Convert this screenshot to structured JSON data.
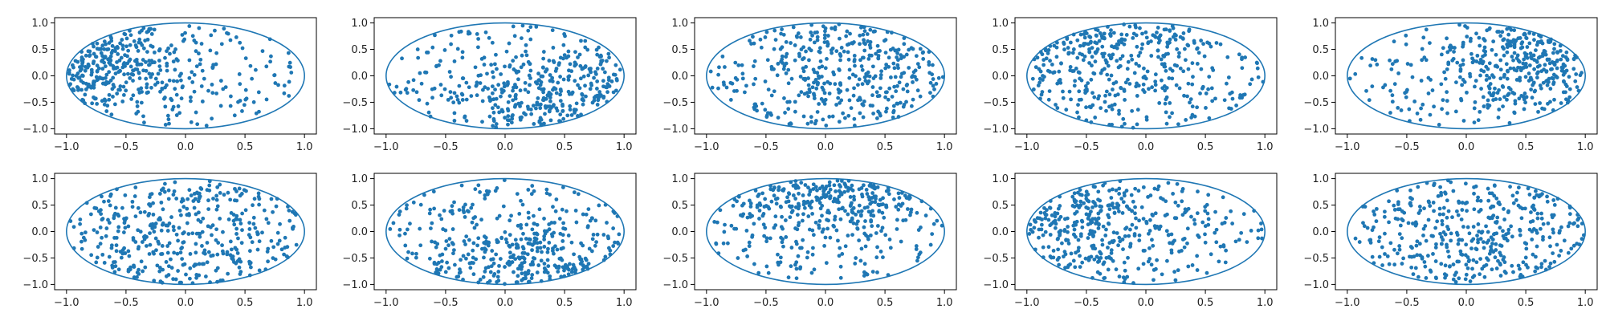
{
  "figure": {
    "layout": {
      "rows": 2,
      "cols": 5
    },
    "colors": {
      "series": "#1f77b4",
      "axes": "#000000",
      "text": "#222222"
    },
    "marker": "dot"
  },
  "chart_data": [
    {
      "type": "scatter",
      "title": "",
      "xlabel": "",
      "ylabel": "",
      "xlim": [
        -1.1,
        1.1
      ],
      "ylim": [
        -1.1,
        1.1
      ],
      "xticks": [
        -1.0,
        -0.5,
        0.0,
        0.5,
        1.0
      ],
      "yticks": [
        -1.0,
        -0.5,
        0.0,
        0.5,
        1.0
      ],
      "xtick_labels": [
        "−1.0",
        "−0.5",
        "0.0",
        "0.5",
        "1.0"
      ],
      "ytick_labels": [
        "−1.0",
        "−0.5",
        "0.0",
        "0.5",
        "1.0"
      ],
      "grid": false,
      "overlay": {
        "shape": "ellipse",
        "cx": 0,
        "cy": 0,
        "rx": 1,
        "ry": 1
      },
      "series": [
        {
          "density_center": [
            -0.8,
            0.2
          ],
          "spread": 0.45,
          "count": 420
        }
      ]
    },
    {
      "type": "scatter",
      "title": "",
      "xlabel": "",
      "ylabel": "",
      "xlim": [
        -1.1,
        1.1
      ],
      "ylim": [
        -1.1,
        1.1
      ],
      "xticks": [
        -1.0,
        -0.5,
        0.0,
        0.5,
        1.0
      ],
      "yticks": [
        -1.0,
        -0.5,
        0.0,
        0.5,
        1.0
      ],
      "xtick_labels": [
        "−1.0",
        "−0.5",
        "0.0",
        "0.5",
        "1.0"
      ],
      "ytick_labels": [
        "−1.0",
        "−0.5",
        "0.0",
        "0.5",
        "1.0"
      ],
      "grid": false,
      "overlay": {
        "shape": "ellipse",
        "cx": 0,
        "cy": 0,
        "rx": 1,
        "ry": 1
      },
      "series": [
        {
          "density_center": [
            0.5,
            -0.4
          ],
          "spread": 0.5,
          "count": 420
        }
      ]
    },
    {
      "type": "scatter",
      "title": "",
      "xlabel": "",
      "ylabel": "",
      "xlim": [
        -1.1,
        1.1
      ],
      "ylim": [
        -1.1,
        1.1
      ],
      "xticks": [
        -1.0,
        -0.5,
        0.0,
        0.5,
        1.0
      ],
      "yticks": [
        -1.0,
        -0.5,
        0.0,
        0.5,
        1.0
      ],
      "xtick_labels": [
        "−1.0",
        "−0.5",
        "0.0",
        "0.5",
        "1.0"
      ],
      "ytick_labels": [
        "−1.0",
        "−0.5",
        "0.0",
        "0.5",
        "1.0"
      ],
      "grid": false,
      "overlay": {
        "shape": "ellipse",
        "cx": 0,
        "cy": 0,
        "rx": 1,
        "ry": 1
      },
      "series": [
        {
          "density_center": [
            0.3,
            0.3
          ],
          "spread": 0.6,
          "count": 420
        }
      ]
    },
    {
      "type": "scatter",
      "title": "",
      "xlabel": "",
      "ylabel": "",
      "xlim": [
        -1.1,
        1.1
      ],
      "ylim": [
        -1.1,
        1.1
      ],
      "xticks": [
        -1.0,
        -0.5,
        0.0,
        0.5,
        1.0
      ],
      "yticks": [
        -1.0,
        -0.5,
        0.0,
        0.5,
        1.0
      ],
      "xtick_labels": [
        "−1.0",
        "−0.5",
        "0.0",
        "0.5",
        "1.0"
      ],
      "ytick_labels": [
        "−1.0",
        "−0.5",
        "0.0",
        "0.5",
        "1.0"
      ],
      "grid": false,
      "overlay": {
        "shape": "ellipse",
        "cx": 0,
        "cy": 0,
        "rx": 1,
        "ry": 1
      },
      "series": [
        {
          "density_center": [
            -0.5,
            0.5
          ],
          "spread": 0.55,
          "count": 420
        }
      ]
    },
    {
      "type": "scatter",
      "title": "",
      "xlabel": "",
      "ylabel": "",
      "xlim": [
        -1.1,
        1.1
      ],
      "ylim": [
        -1.1,
        1.1
      ],
      "xticks": [
        -1.0,
        -0.5,
        0.0,
        0.5,
        1.0
      ],
      "yticks": [
        -1.0,
        -0.5,
        0.0,
        0.5,
        1.0
      ],
      "xtick_labels": [
        "−1.0",
        "−0.5",
        "0.0",
        "0.5",
        "1.0"
      ],
      "ytick_labels": [
        "−1.0",
        "−0.5",
        "0.0",
        "0.5",
        "1.0"
      ],
      "grid": false,
      "overlay": {
        "shape": "ellipse",
        "cx": 0,
        "cy": 0,
        "rx": 1,
        "ry": 1
      },
      "series": [
        {
          "density_center": [
            0.65,
            0.2
          ],
          "spread": 0.45,
          "count": 420
        }
      ]
    },
    {
      "type": "scatter",
      "title": "",
      "xlabel": "",
      "ylabel": "",
      "xlim": [
        -1.1,
        1.1
      ],
      "ylim": [
        -1.1,
        1.1
      ],
      "xticks": [
        -1.0,
        -0.5,
        0.0,
        0.5,
        1.0
      ],
      "yticks": [
        -1.0,
        -0.5,
        0.0,
        0.5,
        1.0
      ],
      "xtick_labels": [
        "−1.0",
        "−0.5",
        "0.0",
        "0.5",
        "1.0"
      ],
      "ytick_labels": [
        "−1.0",
        "−0.5",
        "0.0",
        "0.5",
        "1.0"
      ],
      "grid": false,
      "overlay": {
        "shape": "ellipse",
        "cx": 0,
        "cy": 0,
        "rx": 1,
        "ry": 1
      },
      "series": [
        {
          "density_center": [
            0.0,
            0.0
          ],
          "spread": 0.9,
          "count": 420
        }
      ]
    },
    {
      "type": "scatter",
      "title": "",
      "xlabel": "",
      "ylabel": "",
      "xlim": [
        -1.1,
        1.1
      ],
      "ylim": [
        -1.1,
        1.1
      ],
      "xticks": [
        -1.0,
        -0.5,
        0.0,
        0.5,
        1.0
      ],
      "yticks": [
        -1.0,
        -0.5,
        0.0,
        0.5,
        1.0
      ],
      "xtick_labels": [
        "−1.0",
        "−0.5",
        "0.0",
        "0.5",
        "1.0"
      ],
      "ytick_labels": [
        "−1.0",
        "−0.5",
        "0.0",
        "0.5",
        "1.0"
      ],
      "grid": false,
      "overlay": {
        "shape": "ellipse",
        "cx": 0,
        "cy": 0,
        "rx": 1,
        "ry": 1
      },
      "series": [
        {
          "density_center": [
            0.3,
            -0.7
          ],
          "spread": 0.5,
          "count": 420
        }
      ]
    },
    {
      "type": "scatter",
      "title": "",
      "xlabel": "",
      "ylabel": "",
      "xlim": [
        -1.1,
        1.1
      ],
      "ylim": [
        -1.1,
        1.1
      ],
      "xticks": [
        -1.0,
        -0.5,
        0.0,
        0.5,
        1.0
      ],
      "yticks": [
        -1.0,
        -0.5,
        0.0,
        0.5,
        1.0
      ],
      "xtick_labels": [
        "−1.0",
        "−0.5",
        "0.0",
        "0.5",
        "1.0"
      ],
      "ytick_labels": [
        "−1.0",
        "−0.5",
        "0.0",
        "0.5",
        "1.0"
      ],
      "grid": false,
      "overlay": {
        "shape": "ellipse",
        "cx": 0,
        "cy": 0,
        "rx": 1,
        "ry": 1
      },
      "series": [
        {
          "density_center": [
            0.0,
            0.75
          ],
          "spread": 0.45,
          "count": 420
        }
      ]
    },
    {
      "type": "scatter",
      "title": "",
      "xlabel": "",
      "ylabel": "",
      "xlim": [
        -1.1,
        1.1
      ],
      "ylim": [
        -1.1,
        1.1
      ],
      "xticks": [
        -1.0,
        -0.5,
        0.0,
        0.5,
        1.0
      ],
      "yticks": [
        -1.0,
        -0.5,
        0.0,
        0.5,
        1.0
      ],
      "xtick_labels": [
        "−1.0",
        "−0.5",
        "0.0",
        "0.5",
        "1.0"
      ],
      "ytick_labels": [
        "−1.0",
        "−0.5",
        "0.0",
        "0.5",
        "1.0"
      ],
      "grid": false,
      "overlay": {
        "shape": "ellipse",
        "cx": 0,
        "cy": 0,
        "rx": 1,
        "ry": 1
      },
      "series": [
        {
          "density_center": [
            -0.65,
            0.2
          ],
          "spread": 0.5,
          "count": 420
        }
      ]
    },
    {
      "type": "scatter",
      "title": "",
      "xlabel": "",
      "ylabel": "",
      "xlim": [
        -1.1,
        1.1
      ],
      "ylim": [
        -1.1,
        1.1
      ],
      "xticks": [
        -1.0,
        -0.5,
        0.0,
        0.5,
        1.0
      ],
      "yticks": [
        -1.0,
        -0.5,
        0.0,
        0.5,
        1.0
      ],
      "xtick_labels": [
        "−1.0",
        "−0.5",
        "0.0",
        "0.5",
        "1.0"
      ],
      "ytick_labels": [
        "−1.0",
        "−0.5",
        "0.0",
        "0.5",
        "1.0"
      ],
      "grid": false,
      "overlay": {
        "shape": "ellipse",
        "cx": 0,
        "cy": 0,
        "rx": 1,
        "ry": 1
      },
      "series": [
        {
          "density_center": [
            0.2,
            0.0
          ],
          "spread": 0.65,
          "count": 420
        }
      ]
    }
  ]
}
